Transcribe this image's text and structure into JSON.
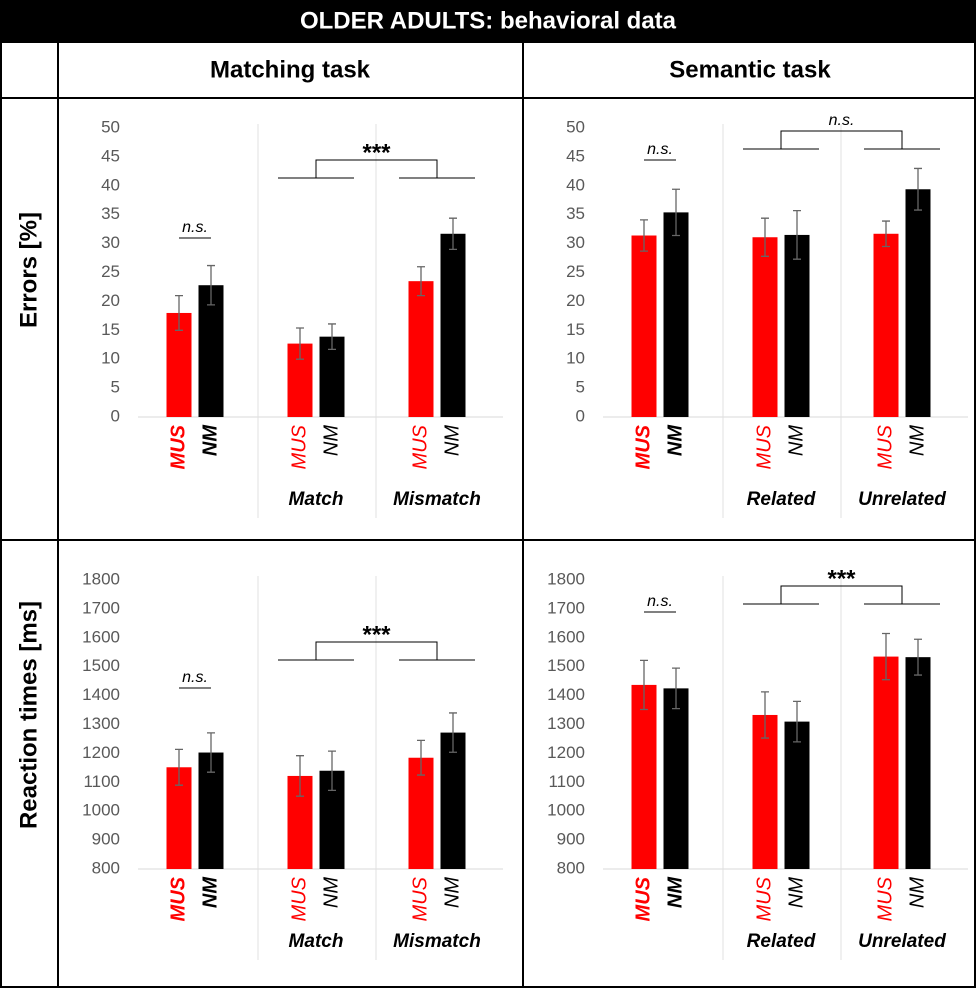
{
  "title": "OLDER ADULTS: behavioral data",
  "columns": [
    "Matching task",
    "Semantic task"
  ],
  "rows": [
    "Errors [%]",
    "Reaction times [ms]"
  ],
  "chart_data": [
    {
      "type": "bar",
      "categories": [
        null,
        "Match",
        "Mismatch"
      ],
      "series": [
        {
          "name": "MUS",
          "color": "#ff0000",
          "values": [
            18,
            12.7,
            23.5
          ],
          "errors": [
            3,
            2.7,
            2.5
          ]
        },
        {
          "name": "NM",
          "color": "#000000",
          "values": [
            22.8,
            13.9,
            31.7
          ],
          "errors": [
            3.4,
            2.2,
            2.7
          ]
        }
      ],
      "ylim": [
        0,
        50
      ],
      "yticks": [
        0,
        5,
        10,
        15,
        20,
        25,
        30,
        35,
        40,
        45,
        50
      ],
      "pair_annotation": "n.s.",
      "bracket_annotation": "***"
    },
    {
      "type": "bar",
      "categories": [
        null,
        "Related",
        "Unrelated"
      ],
      "series": [
        {
          "name": "MUS",
          "color": "#ff0000",
          "values": [
            31.4,
            31.1,
            31.7
          ],
          "errors": [
            2.7,
            3.3,
            2.2
          ]
        },
        {
          "name": "NM",
          "color": "#000000",
          "values": [
            35.4,
            31.5,
            39.4
          ],
          "errors": [
            4,
            4.2,
            3.6
          ]
        }
      ],
      "ylim": [
        0,
        50
      ],
      "yticks": [
        0,
        5,
        10,
        15,
        20,
        25,
        30,
        35,
        40,
        45,
        50
      ],
      "pair_annotation": "n.s.",
      "bracket_annotation": "n.s."
    },
    {
      "type": "bar",
      "categories": [
        null,
        "Match",
        "Mismatch"
      ],
      "series": [
        {
          "name": "MUS",
          "color": "#ff0000",
          "values": [
            1152,
            1122,
            1185
          ],
          "errors": [
            62,
            70,
            60
          ]
        },
        {
          "name": "NM",
          "color": "#000000",
          "values": [
            1203,
            1140,
            1272
          ],
          "errors": [
            68,
            68,
            68
          ]
        }
      ],
      "ylim": [
        800,
        1800
      ],
      "yticks": [
        800,
        900,
        1000,
        1100,
        1200,
        1300,
        1400,
        1500,
        1600,
        1700,
        1800
      ],
      "pair_annotation": "n.s.",
      "bracket_annotation": "***"
    },
    {
      "type": "bar",
      "categories": [
        null,
        "Related",
        "Unrelated"
      ],
      "series": [
        {
          "name": "MUS",
          "color": "#ff0000",
          "values": [
            1437,
            1333,
            1535
          ],
          "errors": [
            85,
            80,
            80
          ]
        },
        {
          "name": "NM",
          "color": "#000000",
          "values": [
            1425,
            1310,
            1533
          ],
          "errors": [
            70,
            70,
            62
          ]
        }
      ],
      "ylim": [
        800,
        1800
      ],
      "yticks": [
        800,
        900,
        1000,
        1100,
        1200,
        1300,
        1400,
        1500,
        1600,
        1700,
        1800
      ],
      "pair_annotation": "n.s.",
      "bracket_annotation": "***"
    }
  ]
}
